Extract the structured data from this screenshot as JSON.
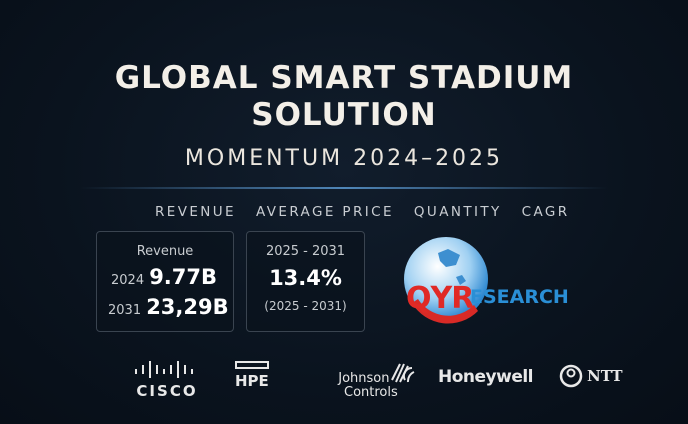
{
  "title_line1": "GLOBAL SMART STADIUM",
  "title_line2": "SOLUTION",
  "subtitle": "MOMENTUM 2024–2025",
  "tabs": [
    "REVENUE",
    "AVERAGE PRICE",
    "QUANTITY",
    "CAGR"
  ],
  "revenue_card": {
    "label": "Revenue",
    "rows": [
      {
        "year": "2024",
        "value": "9.77B"
      },
      {
        "year": "2031",
        "value": "23,29B"
      }
    ]
  },
  "cagr_card": {
    "period": "2025 - 2031",
    "value": "13.4%",
    "note": "(2025 - 2031)"
  },
  "brand_logo": {
    "text_red": "QYR",
    "text_blue": "ESEARCH",
    "colors": {
      "red": "#e02a26",
      "blue": "#2a8fd6"
    }
  },
  "company_logos": {
    "cisco": "CISCO",
    "hpe": "HPE",
    "johnson_1": "Johnson",
    "johnson_2": "Controls",
    "honeywell": "Honeywell",
    "ntt": "NTT"
  }
}
